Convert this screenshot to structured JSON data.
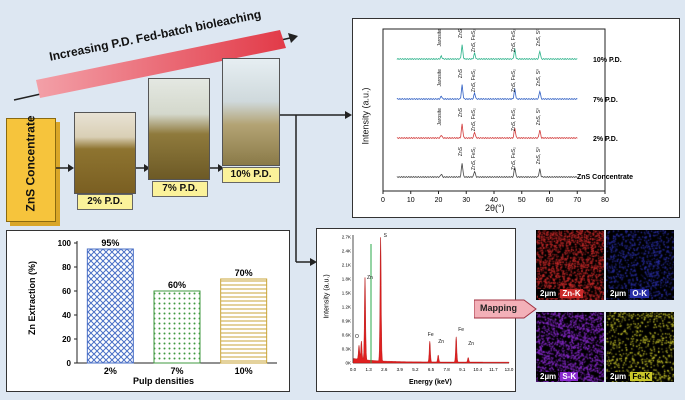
{
  "headline": "Increasing P.D. Fed-batch bioleaching",
  "concentrate_label": "ZnS Concentrate",
  "reactors": [
    {
      "label": "2% P.D."
    },
    {
      "label": "7% P.D."
    },
    {
      "label": "10% P.D."
    }
  ],
  "xrd": {
    "ylabel": "Intensity (a.u.)",
    "xlabel": "2θ(°)",
    "ticks": [
      "0",
      "10",
      "20",
      "30",
      "40",
      "50",
      "60",
      "70",
      "80"
    ],
    "traces": [
      {
        "name": "10% P.D.",
        "color": "#2bb28a"
      },
      {
        "name": "7% P.D.",
        "color": "#2f5fc4"
      },
      {
        "name": "2% P.D.",
        "color": "#d23a3a"
      },
      {
        "name": "ZnS Concentrate",
        "color": "#444444"
      }
    ],
    "peak_labels": [
      "Jarosite",
      "ZnS",
      "ZnS, FeS₂",
      "ZnS, FeS₂",
      "ZnS, S⁰"
    ]
  },
  "chart_data": {
    "type": "bar",
    "categories": [
      "2%",
      "7%",
      "10%"
    ],
    "values": [
      95,
      60,
      70
    ],
    "value_labels": [
      "95%",
      "60%",
      "70%"
    ],
    "ylabel": "Zn Extraction (%)",
    "xlabel": "Pulp densities",
    "ylim": [
      0,
      100
    ],
    "yticks": [
      "0",
      "20",
      "40",
      "60",
      "80",
      "100"
    ],
    "colors": [
      "#4a6fc6",
      "#3f9a3f",
      "#c9a53a"
    ]
  },
  "edx": {
    "ylabel": "Intensity (a.u.)",
    "xlabel": "Energy (keV)",
    "yticks": [
      "0K",
      "0.15K",
      "0.3K",
      "0.45K",
      "0.6K",
      "0.75K",
      "0.9K",
      "1.05K",
      "1.2K",
      "1.35K",
      "1.5K",
      "1.65K",
      "1.8K",
      "1.95K",
      "2.1K",
      "2.25K",
      "2.4K",
      "2.55K",
      "2.7K"
    ],
    "xticks": [
      "0.0",
      "1.3",
      "2.6",
      "3.9",
      "5.2",
      "6.5",
      "7.8",
      "9.1",
      "10.4",
      "11.7",
      "13.0"
    ],
    "peak_labels": [
      "S",
      "Zn",
      "O",
      "Fe",
      "Zn",
      "Fe",
      "Zn"
    ]
  },
  "mapping_label": "Mapping",
  "maps": [
    {
      "scale": "2µm",
      "element": "Zn-K",
      "color": "#cc2a2a"
    },
    {
      "scale": "2µm",
      "element": "O-K",
      "color": "#2a2fa8"
    },
    {
      "scale": "2µm",
      "element": "S-K",
      "color": "#8a2ad0"
    },
    {
      "scale": "2µm",
      "element": "Fe-K",
      "color": "#c9c72a"
    }
  ]
}
